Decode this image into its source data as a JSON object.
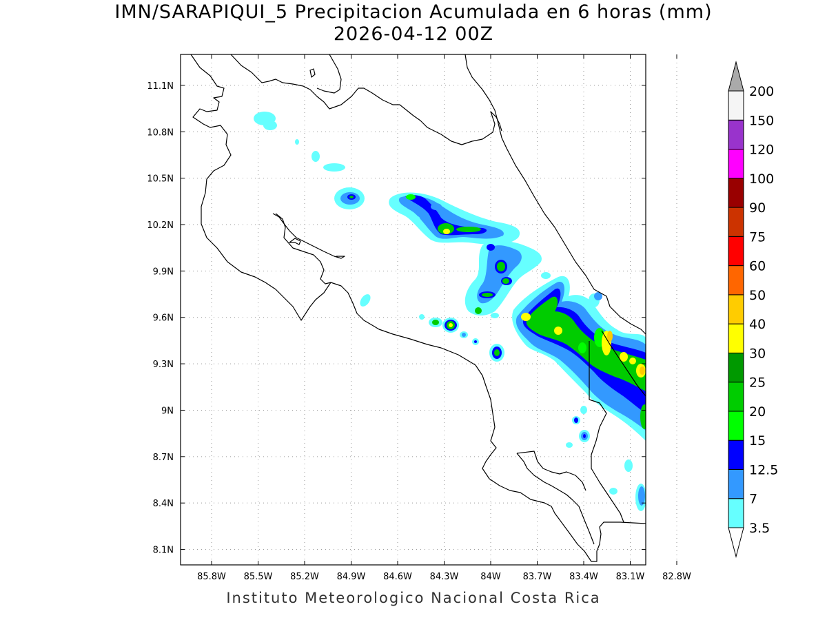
{
  "title": {
    "line1": "IMN/SARAPIQUI_5 Precipitacion Acumulada en 6 horas (mm)",
    "line2": "2026-04-12 00Z"
  },
  "footer": "Instituto Meteorologico Nacional Costa Rica",
  "map": {
    "lon_range": [
      -86.0,
      -83.0
    ],
    "lat_range": [
      8.0,
      11.3
    ],
    "lon_ticks": [
      {
        "value": -85.8,
        "label": "85.8W"
      },
      {
        "value": -85.5,
        "label": "85.5W"
      },
      {
        "value": -85.2,
        "label": "85.2W"
      },
      {
        "value": -84.9,
        "label": "84.9W"
      },
      {
        "value": -84.6,
        "label": "84.6W"
      },
      {
        "value": -84.3,
        "label": "84.3W"
      },
      {
        "value": -84.0,
        "label": "84W"
      },
      {
        "value": -83.7,
        "label": "83.7W"
      },
      {
        "value": -83.4,
        "label": "83.4W"
      },
      {
        "value": -83.1,
        "label": "83.1W"
      },
      {
        "value": -82.8,
        "label": "82.8W"
      }
    ],
    "lat_ticks": [
      {
        "value": 11.1,
        "label": "11.1N"
      },
      {
        "value": 10.8,
        "label": "10.8N"
      },
      {
        "value": 10.5,
        "label": "10.5N"
      },
      {
        "value": 10.2,
        "label": "10.2N"
      },
      {
        "value": 9.9,
        "label": "9.9N"
      },
      {
        "value": 9.6,
        "label": "9.6N"
      },
      {
        "value": 9.3,
        "label": "9.3N"
      },
      {
        "value": 9.0,
        "label": "9N"
      },
      {
        "value": 8.7,
        "label": "8.7N"
      },
      {
        "value": 8.4,
        "label": "8.4N"
      },
      {
        "value": 8.1,
        "label": "8.1N"
      }
    ],
    "grid": "dotted"
  },
  "legend": {
    "levels": [
      {
        "label": "3.5",
        "color": "#66ffff"
      },
      {
        "label": "7",
        "color": "#3399ff"
      },
      {
        "label": "12.5",
        "color": "#0000ff"
      },
      {
        "label": "15",
        "color": "#00ff00"
      },
      {
        "label": "20",
        "color": "#00cc00"
      },
      {
        "label": "25",
        "color": "#009900"
      },
      {
        "label": "30",
        "color": "#ffff00"
      },
      {
        "label": "40",
        "color": "#ffcc00"
      },
      {
        "label": "50",
        "color": "#ff6600"
      },
      {
        "label": "60",
        "color": "#ff0000"
      },
      {
        "label": "75",
        "color": "#cc3300"
      },
      {
        "label": "90",
        "color": "#990000"
      },
      {
        "label": "100",
        "color": "#ff00ff"
      },
      {
        "label": "120",
        "color": "#9933cc"
      },
      {
        "label": "150",
        "color": "#f5f5f5"
      },
      {
        "label": "200",
        "color": "#aaaaaa"
      }
    ]
  }
}
